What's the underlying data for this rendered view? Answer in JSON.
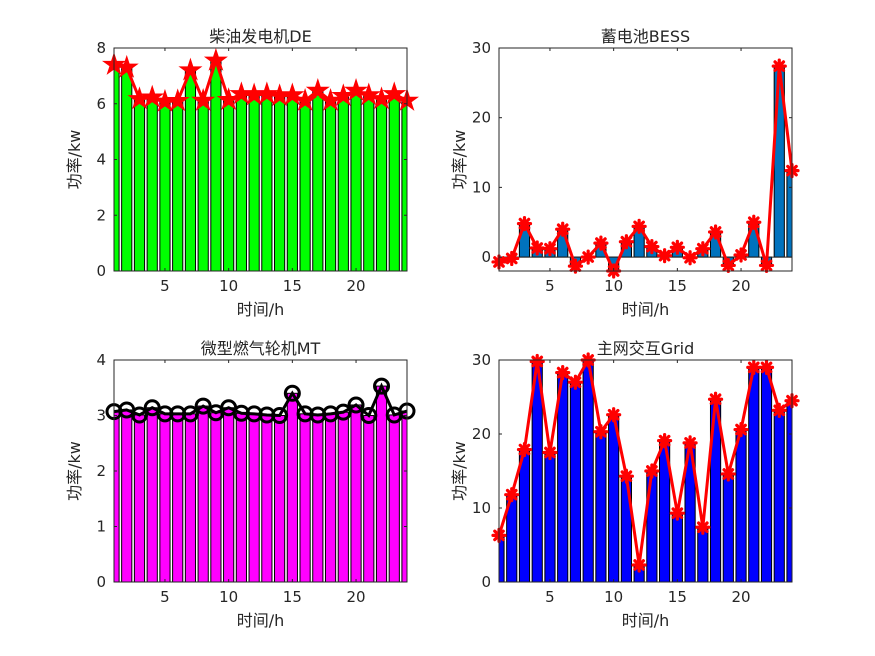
{
  "chart_data": [
    {
      "type": "bar",
      "title": "柴油发电机DE",
      "xlabel": "时间/h",
      "ylabel": "功率/kw",
      "x": [
        1,
        2,
        3,
        4,
        5,
        6,
        7,
        8,
        9,
        10,
        11,
        12,
        13,
        14,
        15,
        16,
        17,
        18,
        19,
        20,
        21,
        22,
        23,
        24
      ],
      "values": [
        7.4,
        7.3,
        6.17,
        6.23,
        6.08,
        6.1,
        7.2,
        6.11,
        7.55,
        6.14,
        6.35,
        6.31,
        6.35,
        6.28,
        6.31,
        6.11,
        6.47,
        6.11,
        6.28,
        6.47,
        6.31,
        6.17,
        6.35,
        6.11
      ],
      "xlim": [
        1,
        24
      ],
      "ylim": [
        0,
        8
      ],
      "xticks": [
        "5",
        "10",
        "15",
        "20"
      ],
      "xtick_values": [
        5,
        10,
        15,
        20
      ],
      "yticks": [
        "0",
        "2",
        "4",
        "6",
        "8"
      ],
      "ytick_values": [
        0,
        2,
        4,
        6,
        8
      ],
      "bar_color": "#00ff00",
      "line_color": "#ff0000",
      "marker": "pentagram"
    },
    {
      "type": "bar",
      "title": "蓄电池BESS",
      "xlabel": "时间/h",
      "ylabel": "功率/kw",
      "x": [
        1,
        2,
        3,
        4,
        5,
        6,
        7,
        8,
        9,
        10,
        11,
        12,
        13,
        14,
        15,
        16,
        17,
        18,
        19,
        20,
        21,
        22,
        23,
        24
      ],
      "values": [
        -0.7,
        -0.2,
        4.8,
        1.3,
        1.2,
        4.0,
        -1.3,
        0,
        2.0,
        -2.0,
        2.2,
        4.4,
        1.5,
        0.2,
        1.4,
        -0.1,
        1.2,
        3.6,
        -1.2,
        0.3,
        5.0,
        -1.2,
        27.4,
        12.4
      ],
      "xlim": [
        1,
        24
      ],
      "ylim": [
        -2,
        30
      ],
      "xticks": [
        "5",
        "10",
        "15",
        "20"
      ],
      "xtick_values": [
        5,
        10,
        15,
        20
      ],
      "yticks": [
        "0",
        "10",
        "20",
        "30"
      ],
      "ytick_values": [
        0,
        10,
        20,
        30
      ],
      "bar_color": "#0072bd",
      "line_color": "#ff0000",
      "marker": "asterisk"
    },
    {
      "type": "bar",
      "title": "微型燃气轮机MT",
      "xlabel": "时间/h",
      "ylabel": "功率/kw",
      "x": [
        1,
        2,
        3,
        4,
        5,
        6,
        7,
        8,
        9,
        10,
        11,
        12,
        13,
        14,
        15,
        16,
        17,
        18,
        19,
        20,
        21,
        22,
        23,
        24
      ],
      "values": [
        3.07,
        3.1,
        3.01,
        3.14,
        3.03,
        3.03,
        3.03,
        3.17,
        3.05,
        3.14,
        3.04,
        3.03,
        3.01,
        3.0,
        3.4,
        3.03,
        3.01,
        3.03,
        3.06,
        3.19,
        3.0,
        3.53,
        3.01,
        3.08
      ],
      "xlim": [
        1,
        24
      ],
      "ylim": [
        0,
        4
      ],
      "xticks": [
        "5",
        "10",
        "15",
        "20"
      ],
      "xtick_values": [
        5,
        10,
        15,
        20
      ],
      "yticks": [
        "0",
        "1",
        "2",
        "3",
        "4"
      ],
      "ytick_values": [
        0,
        1,
        2,
        3,
        4
      ],
      "bar_color": "#ff00ff",
      "line_color": "#000000",
      "marker": "circle"
    },
    {
      "type": "bar",
      "title": "主网交互Grid",
      "xlabel": "时间/h",
      "ylabel": "功率/kw",
      "x": [
        1,
        2,
        3,
        4,
        5,
        6,
        7,
        8,
        9,
        10,
        11,
        12,
        13,
        14,
        15,
        16,
        17,
        18,
        19,
        20,
        21,
        22,
        23,
        24
      ],
      "values": [
        6.3,
        11.8,
        17.9,
        29.8,
        17.5,
        28.3,
        27.0,
        30.0,
        20.3,
        22.6,
        14.3,
        2.3,
        15.0,
        19.1,
        9.3,
        18.8,
        7.4,
        24.7,
        14.6,
        20.6,
        29.0,
        29.0,
        23.2,
        24.5
      ],
      "xlim": [
        1,
        24
      ],
      "ylim": [
        0,
        30
      ],
      "xticks": [
        "5",
        "10",
        "15",
        "20"
      ],
      "xtick_values": [
        5,
        10,
        15,
        20
      ],
      "yticks": [
        "0",
        "10",
        "20",
        "30"
      ],
      "ytick_values": [
        0,
        10,
        20,
        30
      ],
      "bar_color": "#0000ff",
      "line_color": "#ff0000",
      "marker": "asterisk"
    }
  ]
}
